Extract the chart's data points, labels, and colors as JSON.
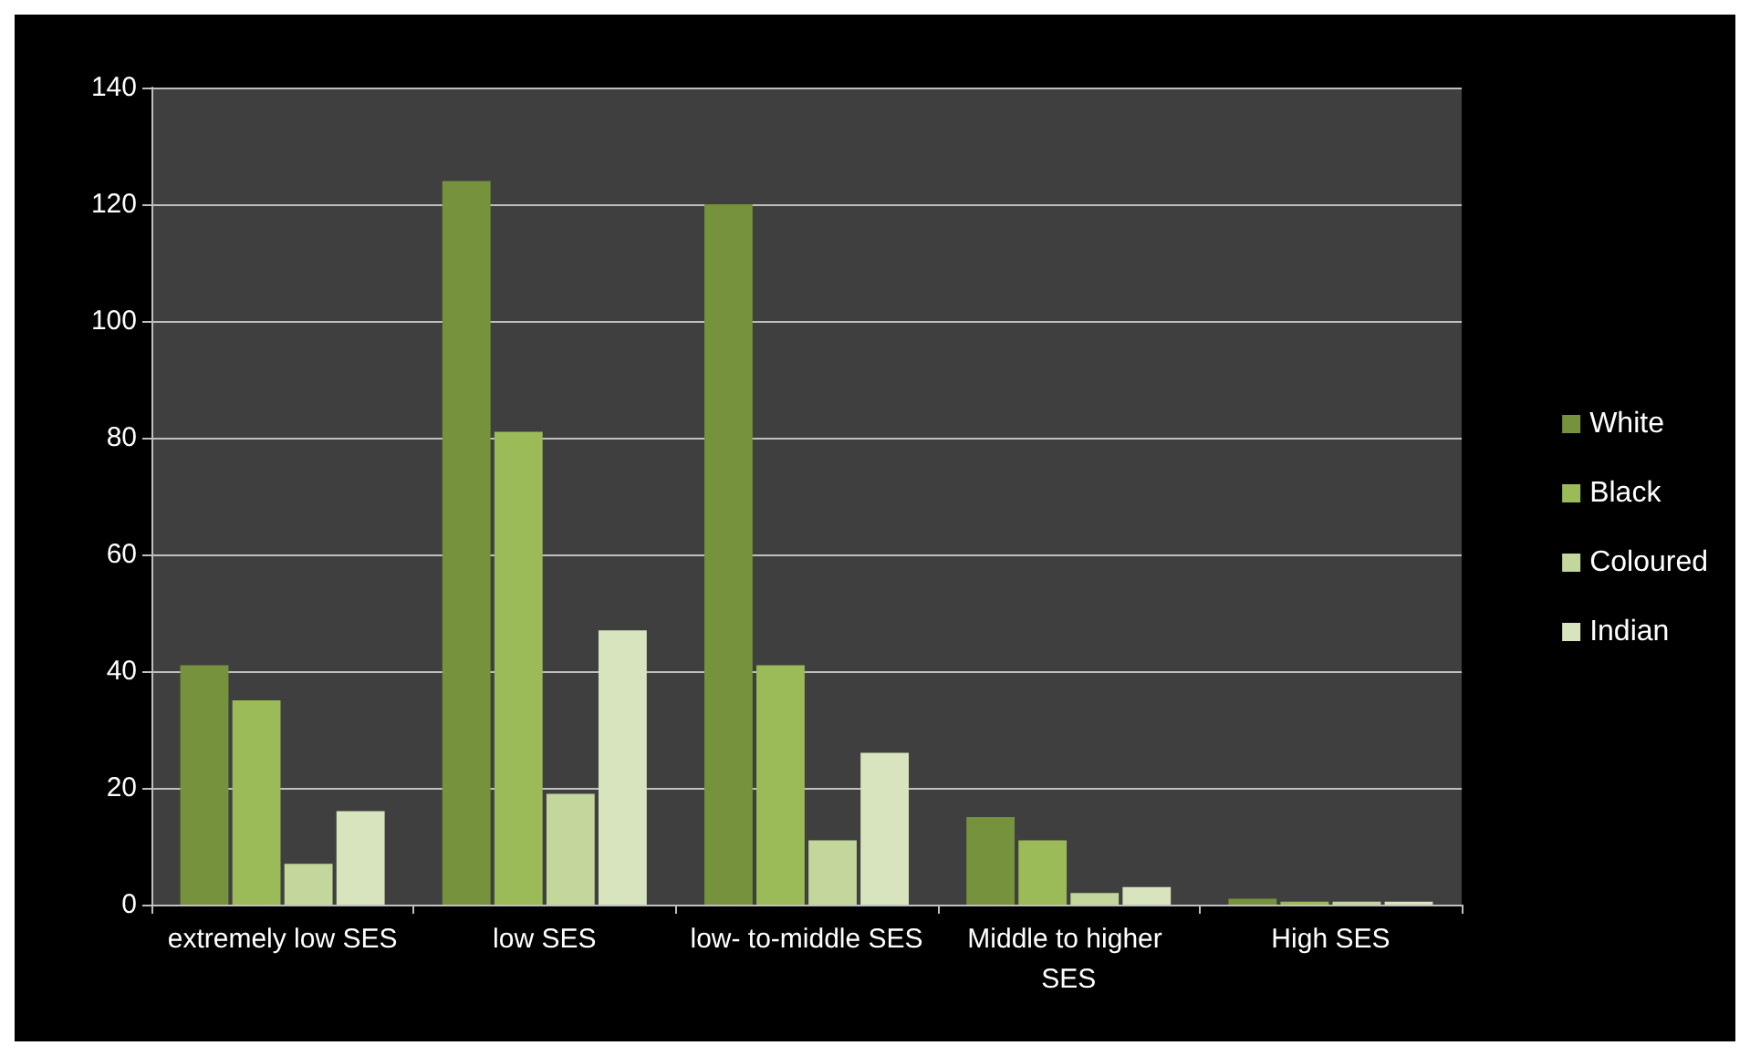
{
  "chart_data": {
    "type": "bar",
    "categories": [
      "extremely low SES",
      "low SES",
      "low- to-middle SES",
      "Middle to higher SES",
      "High SES"
    ],
    "series": [
      {
        "name": "White",
        "color": "#76923c",
        "values": [
          41,
          124,
          120,
          15,
          1
        ]
      },
      {
        "name": "Black",
        "color": "#9bbb59",
        "values": [
          35,
          81,
          41,
          11,
          0.5
        ]
      },
      {
        "name": "Coloured",
        "color": "#c3d69b",
        "values": [
          7,
          19,
          11,
          2,
          0.5
        ]
      },
      {
        "name": "Indian",
        "color": "#d7e4bd",
        "values": [
          16,
          47,
          26,
          3,
          0.5
        ]
      }
    ],
    "ylim": [
      0,
      140
    ],
    "yticks": [
      0,
      20,
      40,
      60,
      80,
      100,
      120,
      140
    ],
    "grid": "y",
    "legend": "right"
  }
}
